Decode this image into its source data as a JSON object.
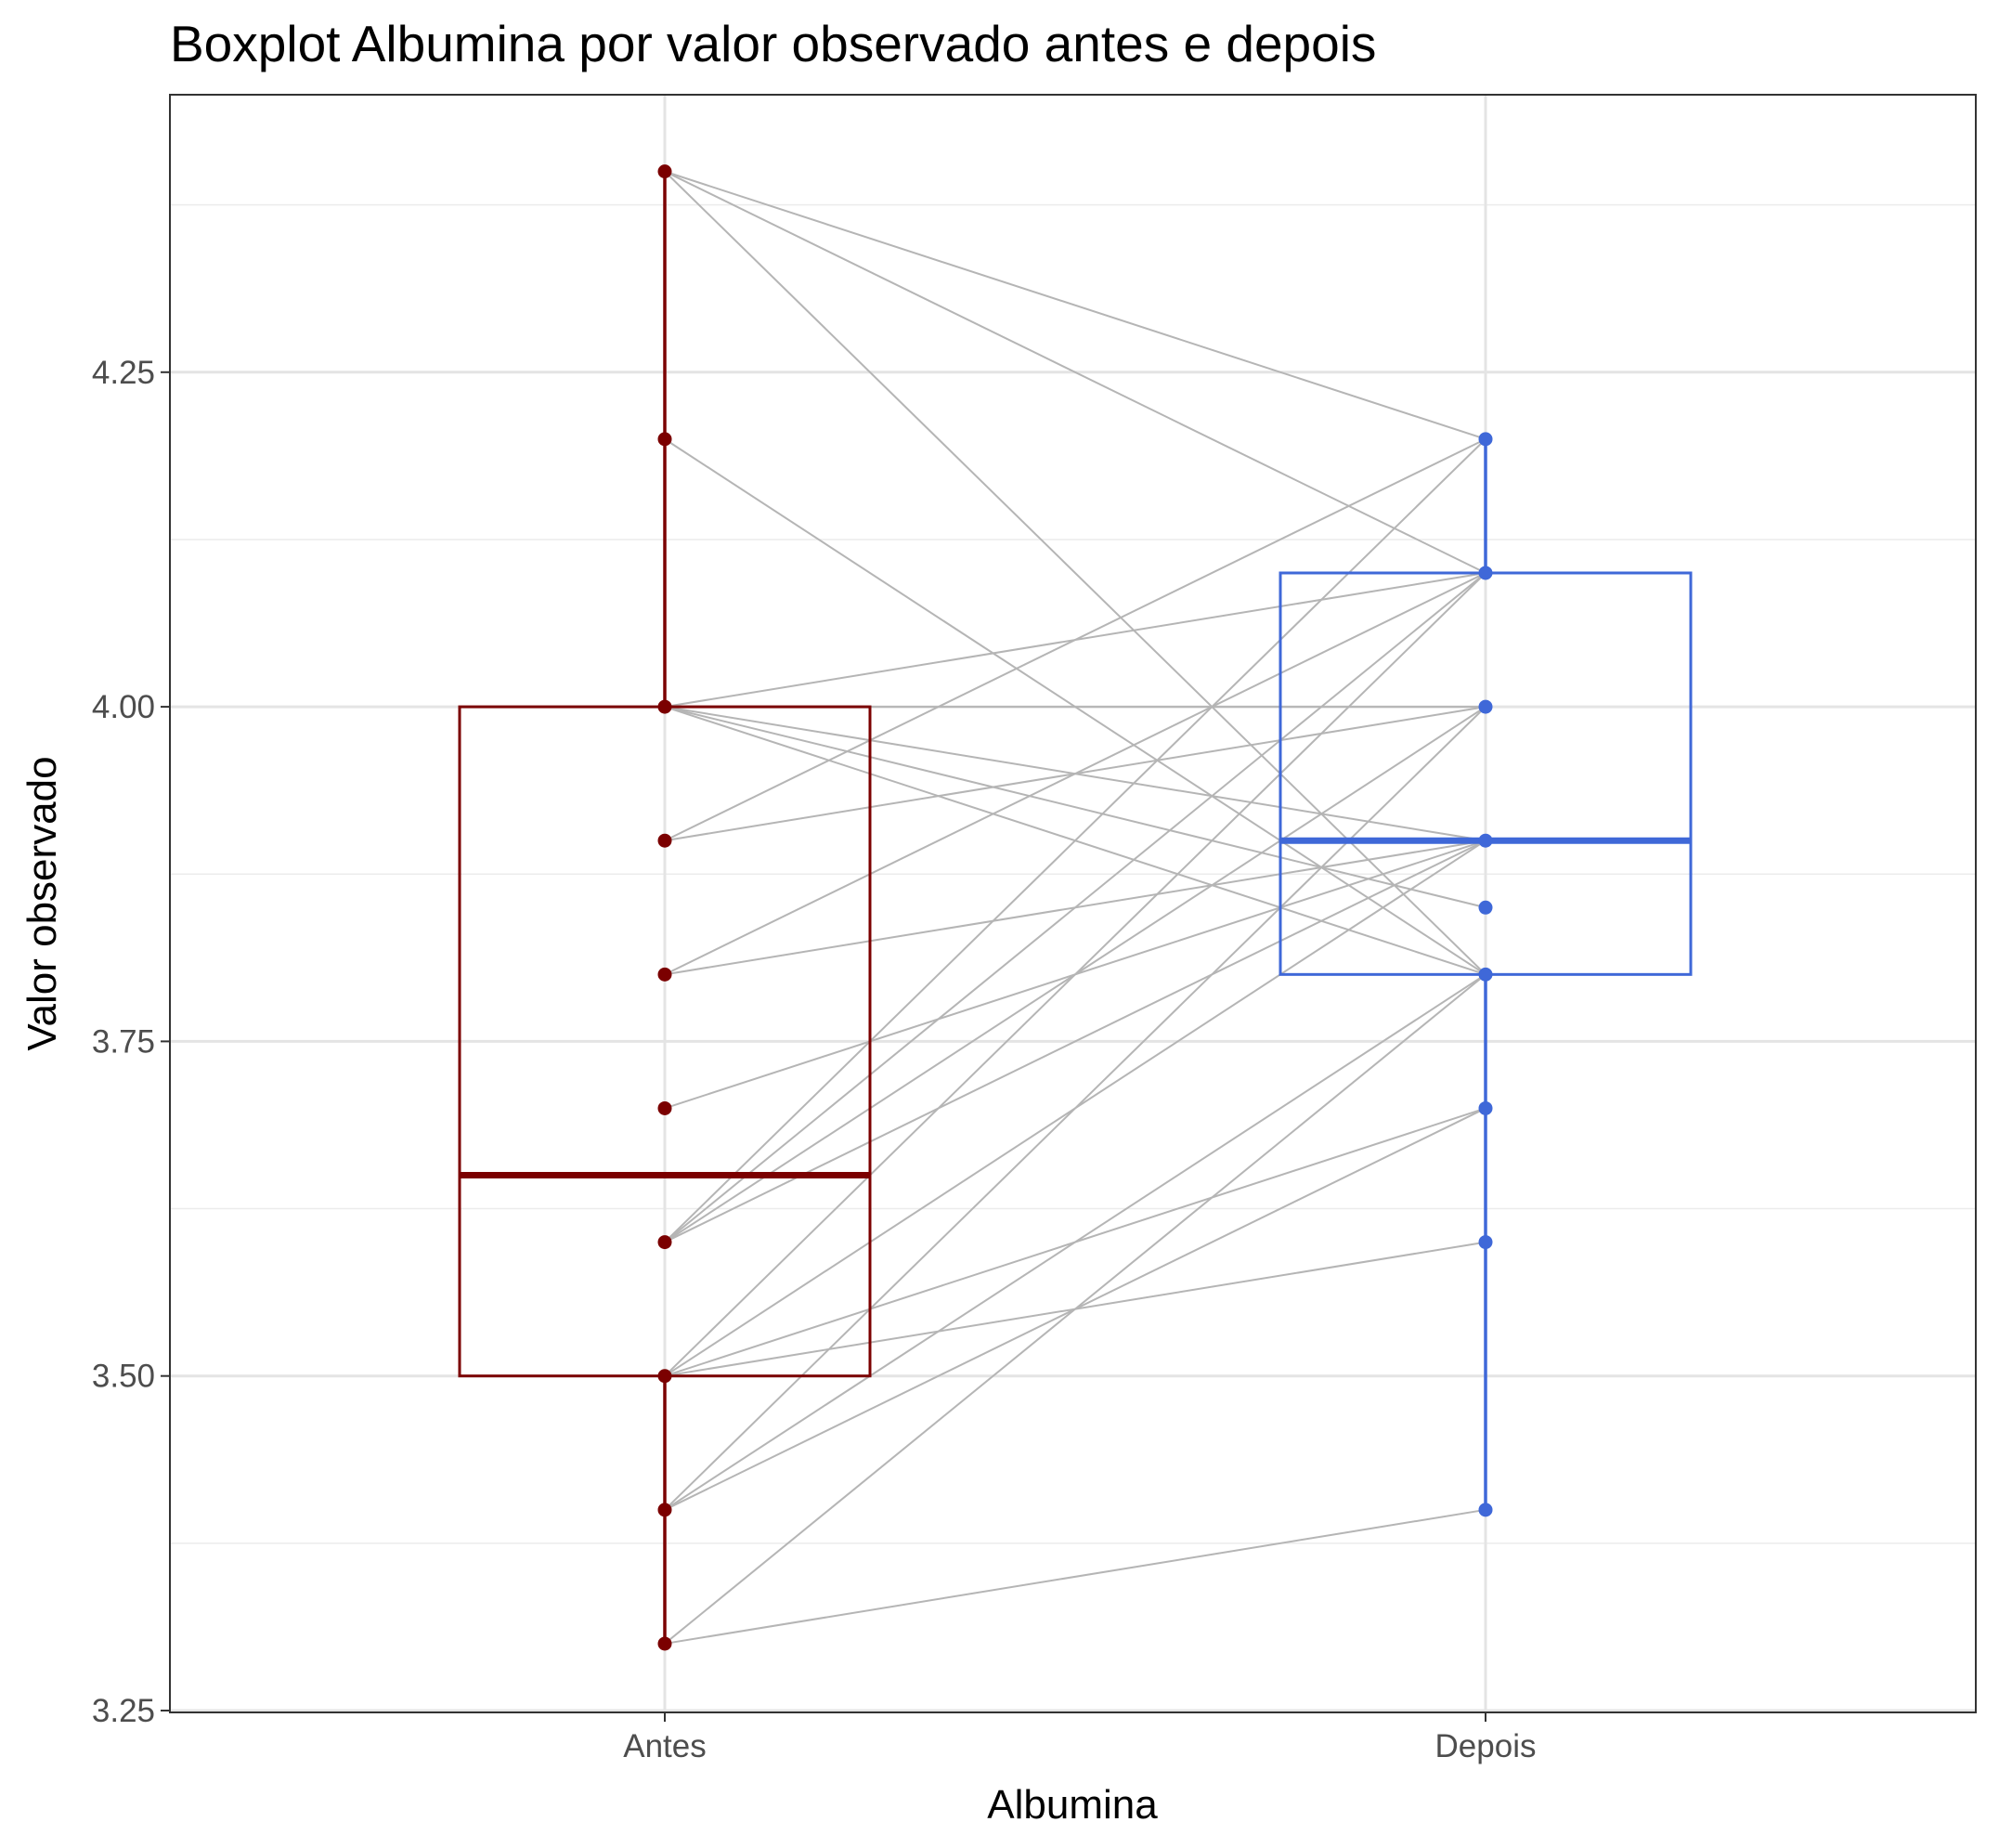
{
  "chart_data": {
    "type": "boxplot",
    "title": "Boxplot Albumina por valor observado antes e depois",
    "xlabel": "Albumina",
    "ylabel": "Valor observado",
    "categories": [
      "Antes",
      "Depois"
    ],
    "ylim": [
      3.25,
      4.45
    ],
    "yticks": [
      3.25,
      3.5,
      3.75,
      4.0,
      4.25
    ],
    "ytick_labels": [
      "3.25",
      "3.50",
      "3.75",
      "4.00",
      "4.25"
    ],
    "grid": true,
    "legend": "none",
    "colors": {
      "Antes": "#7b0000",
      "Depois": "#3f68d8",
      "pair_lines": "#b5b5b5"
    },
    "boxes": [
      {
        "name": "Antes",
        "min": 3.3,
        "q1": 3.5,
        "median": 3.65,
        "q3": 4.0,
        "max": 4.4
      },
      {
        "name": "Depois",
        "min": 3.4,
        "q1": 3.8,
        "median": 3.9,
        "q3": 4.1,
        "max": 4.2
      }
    ],
    "points": {
      "Antes": [
        4.4,
        4.2,
        4.0,
        3.9,
        3.8,
        3.7,
        3.6,
        3.5,
        3.4,
        3.3
      ],
      "Depois": [
        4.2,
        4.1,
        4.0,
        3.9,
        3.85,
        3.8,
        3.7,
        3.6,
        3.4
      ]
    },
    "pairs": [
      [
        4.4,
        4.2
      ],
      [
        4.4,
        4.1
      ],
      [
        4.4,
        3.8
      ],
      [
        4.2,
        3.8
      ],
      [
        4.0,
        4.1
      ],
      [
        4.0,
        4.0
      ],
      [
        4.0,
        3.9
      ],
      [
        4.0,
        3.85
      ],
      [
        4.0,
        3.8
      ],
      [
        3.9,
        4.2
      ],
      [
        3.9,
        4.0
      ],
      [
        3.8,
        4.1
      ],
      [
        3.8,
        3.9
      ],
      [
        3.7,
        3.9
      ],
      [
        3.6,
        4.2
      ],
      [
        3.6,
        4.1
      ],
      [
        3.6,
        4.0
      ],
      [
        3.6,
        3.9
      ],
      [
        3.5,
        4.1
      ],
      [
        3.5,
        3.9
      ],
      [
        3.5,
        3.7
      ],
      [
        3.5,
        3.6
      ],
      [
        3.4,
        4.0
      ],
      [
        3.4,
        3.8
      ],
      [
        3.4,
        3.7
      ],
      [
        3.3,
        3.8
      ],
      [
        3.3,
        3.4
      ]
    ]
  }
}
